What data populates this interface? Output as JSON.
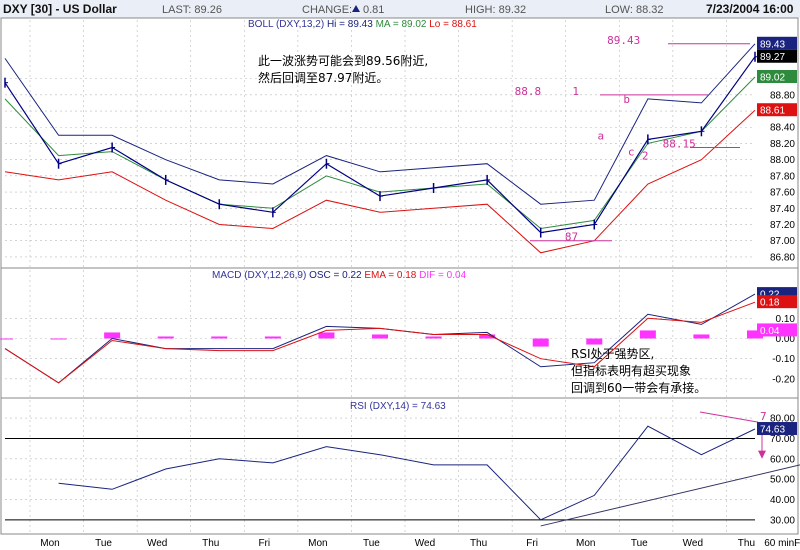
{
  "header": {
    "title": "DXY [30] - US Dollar",
    "last": "LAST: 89.26",
    "change_label": "CHANGE:",
    "change_value": "0.81",
    "high": "HIGH: 89.32",
    "low": "LOW: 88.32",
    "datetime": "7/23/2004 16:00"
  },
  "panels": {
    "boll": {
      "title_prefix": "BOLL (DXY,13,2) ",
      "hi": "Hi = 89.43",
      "ma": "MA = 89.02",
      "lo": "Lo = 88.61",
      "yticks": [
        "89.00",
        "88.80",
        "88.60",
        "88.40",
        "88.20",
        "88.00",
        "87.80",
        "87.60",
        "87.40",
        "87.20",
        "87.00",
        "86.80"
      ],
      "yrange": [
        86.7,
        89.6
      ],
      "last_boxes": [
        {
          "value": "89.43",
          "color": "#1a237e"
        },
        {
          "value": "89.27",
          "color": "#000000"
        },
        {
          "value": "89.02",
          "color": "#2e8b3e"
        },
        {
          "value": "88.61",
          "color": "#dd1111"
        }
      ],
      "note_lines": [
        "此一波涨势可能会到89.56附近,",
        "然后回调至87.97附近。"
      ],
      "annotations": [
        {
          "text": "89.43",
          "x": 0.915,
          "y": 89.43
        },
        {
          "text": "88.8",
          "x": 0.79,
          "y": 88.8
        },
        {
          "text": "1",
          "x": 0.868,
          "y": 88.8
        },
        {
          "text": "b",
          "x": 0.937,
          "y": 88.7
        },
        {
          "text": "a",
          "x": 0.902,
          "y": 88.25
        },
        {
          "text": "c",
          "x": 0.943,
          "y": 88.05
        },
        {
          "text": "2",
          "x": 0.962,
          "y": 88.0
        },
        {
          "text": "88.15",
          "x": 0.99,
          "y": 88.15
        },
        {
          "text": "87",
          "x": 0.858,
          "y": 87.0
        }
      ]
    },
    "macd": {
      "title_prefix": "MACD (DXY,12,26,9) ",
      "osc": "OSC = 0.22",
      "ema": "EMA = 0.18",
      "dif": "DIF = 0.04",
      "yticks": [
        "0.10",
        "0.00",
        "-0.10",
        "-0.20"
      ],
      "yrange": [
        -0.28,
        0.28
      ],
      "last_boxes": [
        {
          "value": "0.22",
          "color": "#1a237e"
        },
        {
          "value": "0.18",
          "color": "#dd1111"
        },
        {
          "value": "0.04",
          "color": "#ff33ff"
        }
      ],
      "note_lines": [
        "RSI处于强势区,",
        "但指标表明有超买现象",
        "回调到60一带会有承接。"
      ]
    },
    "rsi": {
      "title": "RSI (DXY,14) = 74.63",
      "yticks": [
        "80.00",
        "70.00",
        "60.00",
        "50.00",
        "40.00",
        "30.00"
      ],
      "yrange": [
        25,
        83
      ],
      "last_box": {
        "value": "74.63",
        "color": "#1a237e"
      },
      "annot_top": "7"
    }
  },
  "xaxis": {
    "labels": [
      "Mon",
      "Tue",
      "Wed",
      "Thu",
      "Fri",
      "Mon",
      "Tue",
      "Wed",
      "Thu",
      "Fri",
      "Mon",
      "Tue",
      "Wed",
      "Thu",
      "Fri"
    ],
    "unit": "60 min."
  },
  "chart_data": {
    "type": "line",
    "title": "DXY [30] - US Dollar",
    "x": [
      "Mon",
      "Tue",
      "Wed",
      "Thu",
      "Fri",
      "Mon",
      "Tue",
      "Wed",
      "Thu",
      "Fri",
      "Mon",
      "Tue",
      "Wed",
      "Thu",
      "Fri"
    ],
    "price_close": [
      88.95,
      87.95,
      88.15,
      87.75,
      87.45,
      87.35,
      87.95,
      87.55,
      87.65,
      87.75,
      87.1,
      87.2,
      88.25,
      88.35,
      89.27
    ],
    "series": [
      {
        "name": "Hi",
        "values": [
          89.25,
          88.3,
          88.3,
          88.0,
          87.75,
          87.7,
          88.05,
          87.85,
          87.9,
          87.95,
          87.45,
          87.5,
          88.75,
          88.7,
          89.43
        ]
      },
      {
        "name": "MA",
        "values": [
          88.75,
          88.05,
          88.1,
          87.75,
          87.45,
          87.4,
          87.8,
          87.6,
          87.65,
          87.7,
          87.15,
          87.25,
          88.2,
          88.35,
          89.02
        ]
      },
      {
        "name": "Lo",
        "values": [
          87.85,
          87.75,
          87.85,
          87.5,
          87.2,
          87.15,
          87.5,
          87.35,
          87.4,
          87.45,
          86.85,
          87.0,
          87.7,
          88.0,
          88.61
        ]
      },
      {
        "name": "OSC",
        "values": [
          -0.05,
          -0.22,
          0.0,
          -0.05,
          -0.05,
          -0.05,
          0.06,
          0.05,
          0.02,
          0.03,
          -0.14,
          -0.12,
          0.12,
          0.07,
          0.22
        ]
      },
      {
        "name": "EMA",
        "values": [
          -0.05,
          -0.22,
          -0.01,
          -0.05,
          -0.06,
          -0.06,
          0.04,
          0.05,
          0.02,
          0.02,
          -0.1,
          -0.14,
          0.1,
          0.08,
          0.18
        ]
      },
      {
        "name": "DIF",
        "values": [
          0.0,
          0.0,
          0.03,
          0.01,
          0.01,
          0.01,
          0.03,
          0.02,
          0.01,
          0.02,
          -0.04,
          -0.03,
          0.04,
          0.02,
          0.04
        ]
      },
      {
        "name": "RSI",
        "values": [
          null,
          48,
          45,
          55,
          60,
          58,
          66,
          62,
          57,
          57,
          30,
          42,
          76,
          62,
          74.63
        ]
      }
    ],
    "ylim_price": [
      86.7,
      89.6
    ],
    "ylim_macd": [
      -0.28,
      0.28
    ],
    "ylim_rsi": [
      25,
      83
    ],
    "grid": true
  }
}
